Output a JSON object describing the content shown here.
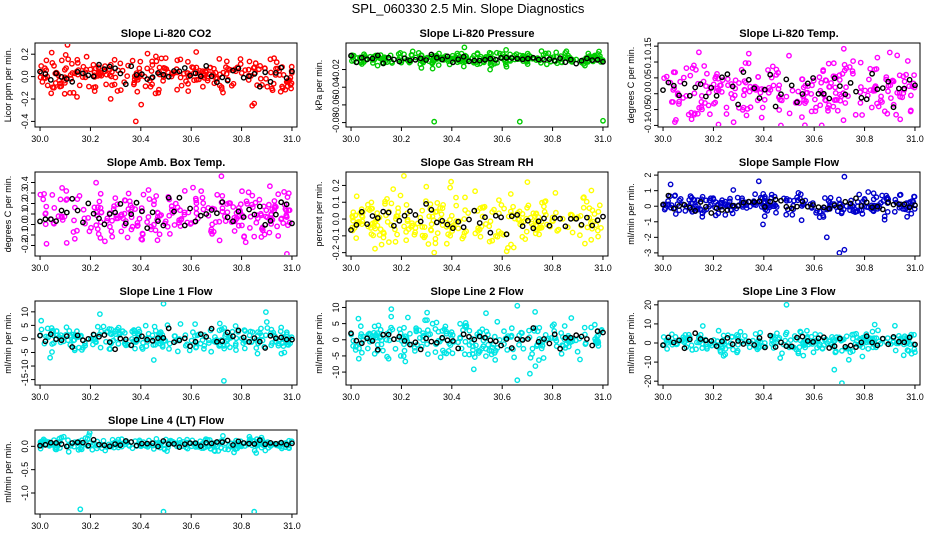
{
  "figure_title": "SPL_060330  2.5 Min. Slope Diagnostics",
  "overlay_color": "#000000",
  "chart_data": [
    {
      "type": "scatter",
      "title": "Slope Li-820 CO2",
      "ylabel": "Licor ppm per min.",
      "color": "#ff0000",
      "xlim": [
        29.98,
        31.02
      ],
      "ylim": [
        -0.45,
        0.3
      ],
      "xticks": [
        30.0,
        30.2,
        30.4,
        30.6,
        30.8,
        31.0
      ],
      "xtick_labels": [
        "30.0",
        "30.2",
        "30.4",
        "30.6",
        "30.8",
        "31.0"
      ],
      "yticks": [
        -0.4,
        -0.2,
        0.0,
        0.2
      ],
      "ytick_labels": [
        "-0.4",
        "-0.2",
        "0.0",
        "0.2"
      ],
      "spread": 0.08,
      "center": 0.02,
      "outliers": [
        [
          30.38,
          -0.4
        ],
        [
          30.62,
          0.22
        ],
        [
          30.46,
          0.18
        ],
        [
          30.85,
          -0.24
        ]
      ]
    },
    {
      "type": "scatter",
      "title": "Slope Li-820 Pressure",
      "ylabel": "kPa per min.",
      "color": "#00cc00",
      "xlim": [
        29.98,
        31.02
      ],
      "ylim": [
        -0.085,
        0.01
      ],
      "xticks": [
        30.0,
        30.2,
        30.4,
        30.6,
        30.8,
        31.0
      ],
      "xtick_labels": [
        "30.0",
        "30.2",
        "30.4",
        "30.6",
        "30.8",
        "31.0"
      ],
      "yticks": [
        -0.08,
        -0.06,
        -0.04,
        -0.02
      ],
      "ytick_labels": [
        "-0.08",
        "-0.06",
        "-0.04",
        "-0.02"
      ],
      "spread": 0.004,
      "center": -0.008,
      "outliers": [
        [
          30.33,
          -0.079
        ],
        [
          30.67,
          -0.079
        ],
        [
          31.0,
          -0.078
        ],
        [
          30.45,
          0.005
        ]
      ]
    },
    {
      "type": "scatter",
      "title": "Slope Li-820 Temp.",
      "ylabel": "degrees C per min.",
      "color": "#ff00ff",
      "xlim": [
        29.98,
        31.02
      ],
      "ylim": [
        -0.105,
        0.16
      ],
      "xticks": [
        30.0,
        30.2,
        30.4,
        30.6,
        30.8,
        31.0
      ],
      "xtick_labels": [
        "30.0",
        "30.2",
        "30.4",
        "30.6",
        "30.8",
        "31.0"
      ],
      "yticks": [
        -0.1,
        -0.05,
        0.0,
        0.05,
        0.1,
        0.15
      ],
      "ytick_labels": [
        "-0.1",
        "-0.05",
        "0.0",
        "0.05",
        "0.1",
        "0.15"
      ],
      "spread": 0.05,
      "center": 0.01,
      "outliers": [
        [
          30.63,
          -0.1
        ],
        [
          30.5,
          0.12
        ],
        [
          30.9,
          0.13
        ],
        [
          30.28,
          -0.09
        ]
      ]
    },
    {
      "type": "scatter",
      "title": "Slope Amb. Box Temp.",
      "ylabel": "degrees C per min.",
      "color": "#ff00ff",
      "xlim": [
        29.98,
        31.02
      ],
      "ylim": [
        -0.3,
        0.5
      ],
      "xticks": [
        30.0,
        30.2,
        30.4,
        30.6,
        30.8,
        31.0
      ],
      "xtick_labels": [
        "30.0",
        "30.2",
        "30.4",
        "30.6",
        "30.8",
        "31.0"
      ],
      "yticks": [
        -0.2,
        -0.1,
        0.0,
        0.1,
        0.2,
        0.3,
        0.4
      ],
      "ytick_labels": [
        "-0.2",
        "-0.1",
        "0.0",
        "0.1",
        "0.2",
        "0.3",
        "0.4"
      ],
      "spread": 0.12,
      "center": 0.08,
      "outliers": [
        [
          30.98,
          -0.28
        ],
        [
          30.72,
          0.46
        ]
      ]
    },
    {
      "type": "scatter",
      "title": "Slope Gas Stream RH",
      "ylabel": "percent per min.",
      "color": "#ffff00",
      "xlim": [
        29.98,
        31.02
      ],
      "ylim": [
        -0.22,
        0.28
      ],
      "xticks": [
        30.0,
        30.2,
        30.4,
        30.6,
        30.8,
        31.0
      ],
      "xtick_labels": [
        "30.0",
        "30.2",
        "30.4",
        "30.6",
        "30.8",
        "31.0"
      ],
      "yticks": [
        -0.2,
        -0.1,
        0.0,
        0.1,
        0.2
      ],
      "ytick_labels": [
        "-0.2",
        "-0.1",
        "0.0",
        "0.1",
        "0.2"
      ],
      "spread": 0.08,
      "center": 0.0,
      "outliers": [
        [
          30.33,
          -0.2
        ],
        [
          30.7,
          0.22
        ]
      ]
    },
    {
      "type": "scatter",
      "title": "Slope Sample Flow",
      "ylabel": "ml/min per min.",
      "color": "#0000cc",
      "xlim": [
        29.98,
        31.02
      ],
      "ylim": [
        -3.2,
        2.2
      ],
      "xticks": [
        30.0,
        30.2,
        30.4,
        30.6,
        30.8,
        31.0
      ],
      "xtick_labels": [
        "30.0",
        "30.2",
        "30.4",
        "30.6",
        "30.8",
        "31.0"
      ],
      "yticks": [
        -3,
        -2,
        -1,
        0,
        1,
        2
      ],
      "ytick_labels": [
        "-3",
        "-2",
        "-1",
        "0",
        "1",
        "2"
      ],
      "spread": 0.35,
      "center": 0.1,
      "outliers": [
        [
          30.7,
          -3.0
        ],
        [
          30.72,
          -2.8
        ],
        [
          30.65,
          -2.0
        ],
        [
          30.55,
          -0.9
        ],
        [
          30.72,
          1.9
        ],
        [
          30.38,
          1.6
        ],
        [
          30.03,
          1.4
        ]
      ]
    },
    {
      "type": "scatter",
      "title": "Slope Line 1 Flow",
      "ylabel": "ml/min per min.",
      "color": "#00e5e5",
      "xlim": [
        29.98,
        31.02
      ],
      "ylim": [
        -17,
        14
      ],
      "xticks": [
        30.0,
        30.2,
        30.4,
        30.6,
        30.8,
        31.0
      ],
      "xtick_labels": [
        "30.0",
        "30.2",
        "30.4",
        "30.6",
        "30.8",
        "31.0"
      ],
      "yticks": [
        -15,
        -10,
        -5,
        0,
        5,
        10
      ],
      "ytick_labels": [
        "-15",
        "-10",
        "-5",
        "0",
        "5",
        "10"
      ],
      "spread": 2.5,
      "center": 0.0,
      "outliers": [
        [
          30.49,
          13
        ],
        [
          30.73,
          -15.5
        ],
        [
          30.97,
          -5
        ]
      ]
    },
    {
      "type": "scatter",
      "title": "Slope Line 2 Flow",
      "ylabel": "ml/min per min.",
      "color": "#00e5e5",
      "xlim": [
        29.98,
        31.02
      ],
      "ylim": [
        -14,
        12
      ],
      "xticks": [
        30.0,
        30.2,
        30.4,
        30.6,
        30.8,
        31.0
      ],
      "xtick_labels": [
        "30.0",
        "30.2",
        "30.4",
        "30.6",
        "30.8",
        "31.0"
      ],
      "yticks": [
        -10,
        -5,
        0,
        5,
        10
      ],
      "ytick_labels": [
        "-10",
        "-5",
        "0",
        "5",
        "10"
      ],
      "spread": 3.0,
      "center": 0.0,
      "outliers": [
        [
          30.66,
          -12.5
        ],
        [
          30.71,
          -10.5
        ],
        [
          30.66,
          10.5
        ],
        [
          30.16,
          9.5
        ]
      ]
    },
    {
      "type": "scatter",
      "title": "Slope Line 3 Flow",
      "ylabel": "ml/min per min.",
      "color": "#00e5e5",
      "xlim": [
        29.98,
        31.02
      ],
      "ylim": [
        -22,
        22
      ],
      "xticks": [
        30.0,
        30.2,
        30.4,
        30.6,
        30.8,
        31.0
      ],
      "xtick_labels": [
        "30.0",
        "30.2",
        "30.4",
        "30.6",
        "30.8",
        "31.0"
      ],
      "yticks": [
        -20,
        -10,
        0,
        10,
        20
      ],
      "ytick_labels": [
        "-20",
        "-10",
        "0",
        "10",
        "20"
      ],
      "spread": 3.0,
      "center": 0.5,
      "outliers": [
        [
          30.71,
          -21
        ],
        [
          30.49,
          20
        ],
        [
          30.68,
          -14
        ]
      ]
    },
    {
      "type": "scatter",
      "title": "Slope Line 4 (LT) Flow",
      "ylabel": "ml/min per min.",
      "color": "#00e5e5",
      "xlim": [
        29.98,
        31.02
      ],
      "ylim": [
        -1.45,
        0.35
      ],
      "xticks": [
        30.0,
        30.2,
        30.4,
        30.6,
        30.8,
        31.0
      ],
      "xtick_labels": [
        "30.0",
        "30.2",
        "30.4",
        "30.6",
        "30.8",
        "31.0"
      ],
      "yticks": [
        -1.0,
        -0.5,
        0.0
      ],
      "ytick_labels": [
        "-1.0",
        "-0.5",
        "0.0"
      ],
      "spread": 0.07,
      "center": 0.05,
      "outliers": [
        [
          30.16,
          -1.35
        ],
        [
          30.49,
          -1.4
        ],
        [
          30.85,
          -1.4
        ]
      ]
    }
  ]
}
